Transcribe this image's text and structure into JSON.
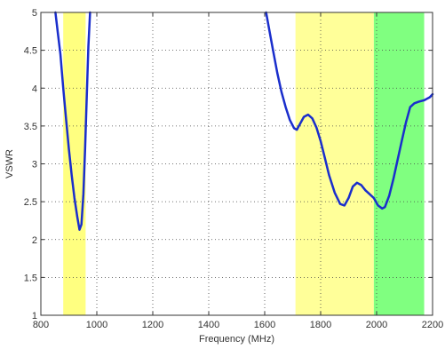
{
  "chart_data": {
    "type": "line",
    "xlabel": "Frequency (MHz)",
    "ylabel": "VSWR",
    "xlim": [
      800,
      2200
    ],
    "ylim": [
      1,
      5
    ],
    "xticks": [
      800,
      1000,
      1200,
      1400,
      1600,
      1800,
      2000,
      2200
    ],
    "yticks": [
      1,
      1.5,
      2,
      2.5,
      3,
      3.5,
      4,
      4.5,
      5
    ],
    "xtick_labels": [
      "800",
      "1000",
      "1200",
      "1400",
      "1600",
      "1800",
      "2000",
      "2200"
    ],
    "ytick_labels": [
      "1",
      "1.5",
      "2",
      "2.5",
      "3",
      "3.5",
      "4",
      "4.5",
      "5"
    ],
    "grid": true,
    "shaded_bands": [
      {
        "x0": 880,
        "x1": 960,
        "color": "#ffff80"
      },
      {
        "x0": 1710,
        "x1": 1990,
        "color": "#ffff99"
      },
      {
        "x0": 1990,
        "x1": 2170,
        "color": "#80ff80"
      }
    ],
    "series": [
      {
        "color": "#1a2ecc",
        "segments": [
          {
            "x": [
              852,
              860,
              870,
              880,
              890,
              900,
              910,
              920,
              930,
              938,
              945,
              952,
              958,
              964,
              970,
              976
            ],
            "y": [
              5.0,
              4.75,
              4.45,
              4.0,
              3.6,
              3.2,
              2.85,
              2.55,
              2.3,
              2.13,
              2.2,
              2.6,
              3.2,
              3.9,
              4.55,
              5.0
            ]
          },
          {
            "x": [
              1605,
              1615,
              1630,
              1645,
              1660,
              1675,
              1690,
              1705,
              1715,
              1725,
              1740,
              1755,
              1770,
              1785,
              1800,
              1815,
              1830,
              1850,
              1870,
              1885,
              1900,
              1915,
              1930,
              1945,
              1960,
              1975,
              1990,
              2005,
              2020,
              2030,
              2045,
              2060,
              2075,
              2090,
              2105,
              2120,
              2135,
              2150,
              2160,
              2170,
              2180,
              2190,
              2200
            ],
            "y": [
              5.0,
              4.8,
              4.5,
              4.2,
              3.95,
              3.75,
              3.58,
              3.47,
              3.45,
              3.52,
              3.62,
              3.65,
              3.6,
              3.48,
              3.3,
              3.08,
              2.85,
              2.62,
              2.47,
              2.45,
              2.55,
              2.7,
              2.75,
              2.72,
              2.65,
              2.6,
              2.55,
              2.45,
              2.41,
              2.43,
              2.58,
              2.8,
              3.05,
              3.3,
              3.55,
              3.75,
              3.8,
              3.82,
              3.83,
              3.84,
              3.86,
              3.88,
              3.92
            ]
          }
        ]
      }
    ]
  }
}
